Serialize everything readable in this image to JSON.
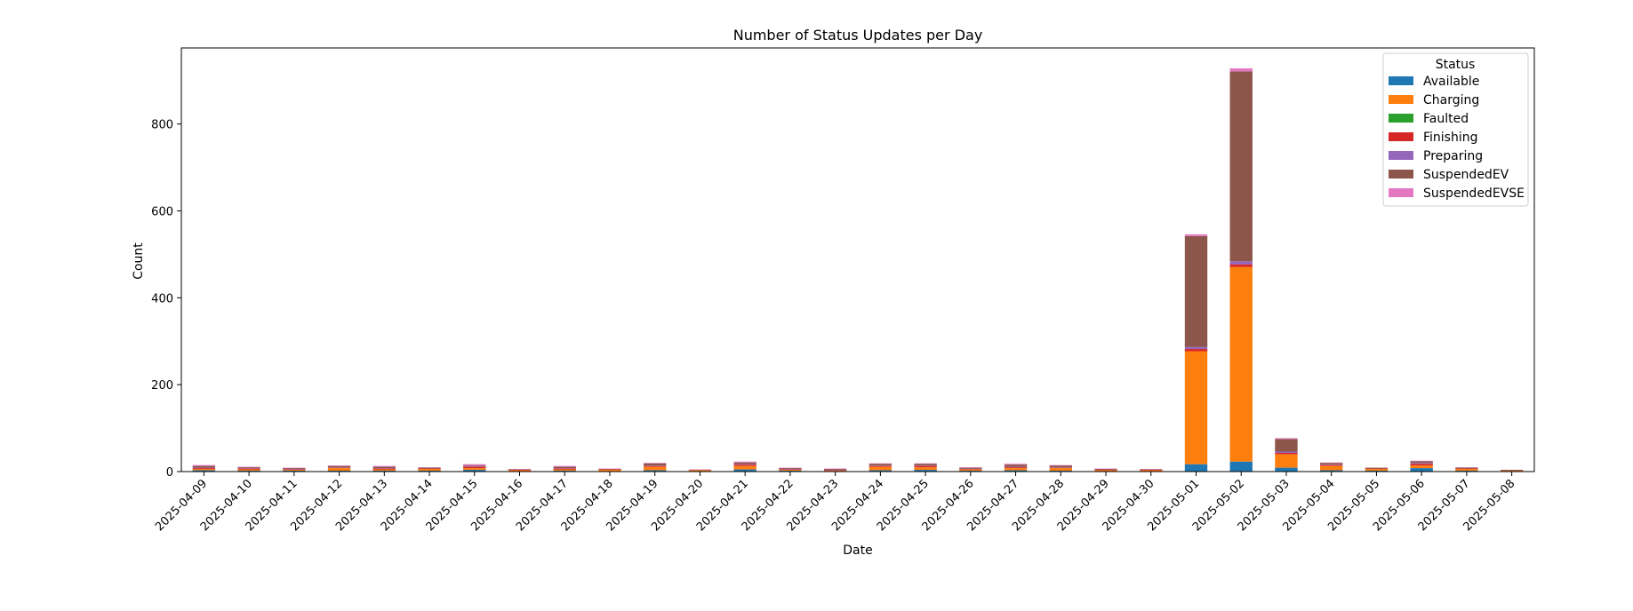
{
  "chart_data": {
    "type": "bar",
    "stacked": true,
    "title": "Number of Status Updates per Day",
    "xlabel": "Date",
    "ylabel": "Count",
    "ylim": [
      0,
      975
    ],
    "yticks": [
      0,
      200,
      400,
      600,
      800
    ],
    "grid": false,
    "legend": {
      "title": "Status",
      "placement": "top-right"
    },
    "categories": [
      "2025-04-09",
      "2025-04-10",
      "2025-04-11",
      "2025-04-12",
      "2025-04-13",
      "2025-04-14",
      "2025-04-15",
      "2025-04-16",
      "2025-04-17",
      "2025-04-18",
      "2025-04-19",
      "2025-04-20",
      "2025-04-21",
      "2025-04-22",
      "2025-04-23",
      "2025-04-24",
      "2025-04-25",
      "2025-04-26",
      "2025-04-27",
      "2025-04-28",
      "2025-04-29",
      "2025-04-30",
      "2025-05-01",
      "2025-05-02",
      "2025-05-03",
      "2025-05-04",
      "2025-05-05",
      "2025-05-06",
      "2025-05-07",
      "2025-05-08"
    ],
    "series": [
      {
        "name": "Available",
        "color": "#1f77b4",
        "values": [
          3,
          2,
          2,
          2,
          2,
          2,
          4,
          1,
          2,
          1,
          3,
          1,
          5,
          2,
          1,
          3,
          4,
          2,
          3,
          2,
          1,
          1,
          17,
          23,
          9,
          3,
          2,
          8,
          2,
          1
        ]
      },
      {
        "name": "Charging",
        "color": "#ff7f0e",
        "values": [
          3,
          3,
          2,
          6,
          3,
          4,
          4,
          2,
          3,
          3,
          8,
          2,
          8,
          2,
          1,
          8,
          6,
          3,
          5,
          6,
          2,
          2,
          260,
          448,
          31,
          10,
          4,
          6,
          4,
          1
        ]
      },
      {
        "name": "Faulted",
        "color": "#2ca02c",
        "values": [
          0,
          0,
          0,
          0,
          0,
          0,
          0,
          0,
          0,
          0,
          0,
          0,
          0,
          0,
          0,
          0,
          0,
          0,
          0,
          0,
          0,
          0,
          0,
          0,
          0,
          0,
          0,
          0,
          0,
          0
        ]
      },
      {
        "name": "Finishing",
        "color": "#d62728",
        "values": [
          2,
          2,
          1,
          1,
          2,
          1,
          3,
          1,
          2,
          1,
          2,
          0,
          3,
          1,
          1,
          2,
          3,
          1,
          2,
          1,
          1,
          1,
          5,
          6,
          3,
          2,
          1,
          4,
          1,
          0
        ]
      },
      {
        "name": "Preparing",
        "color": "#9467bd",
        "values": [
          1,
          1,
          1,
          1,
          1,
          0,
          1,
          0,
          1,
          0,
          1,
          0,
          1,
          1,
          1,
          1,
          1,
          1,
          1,
          1,
          0,
          0,
          5,
          7,
          3,
          1,
          0,
          2,
          0,
          0
        ]
      },
      {
        "name": "SuspendedEV",
        "color": "#8c564b",
        "values": [
          4,
          2,
          2,
          3,
          3,
          2,
          2,
          1,
          3,
          1,
          5,
          1,
          4,
          2,
          2,
          4,
          4,
          2,
          5,
          4,
          2,
          1,
          255,
          437,
          29,
          4,
          2,
          4,
          2,
          2
        ]
      },
      {
        "name": "SuspendedEVSE",
        "color": "#e377c2",
        "values": [
          2,
          1,
          1,
          1,
          2,
          1,
          3,
          1,
          2,
          1,
          1,
          1,
          2,
          1,
          1,
          1,
          1,
          1,
          2,
          1,
          1,
          1,
          4,
          7,
          2,
          1,
          0,
          1,
          1,
          0
        ]
      }
    ]
  }
}
